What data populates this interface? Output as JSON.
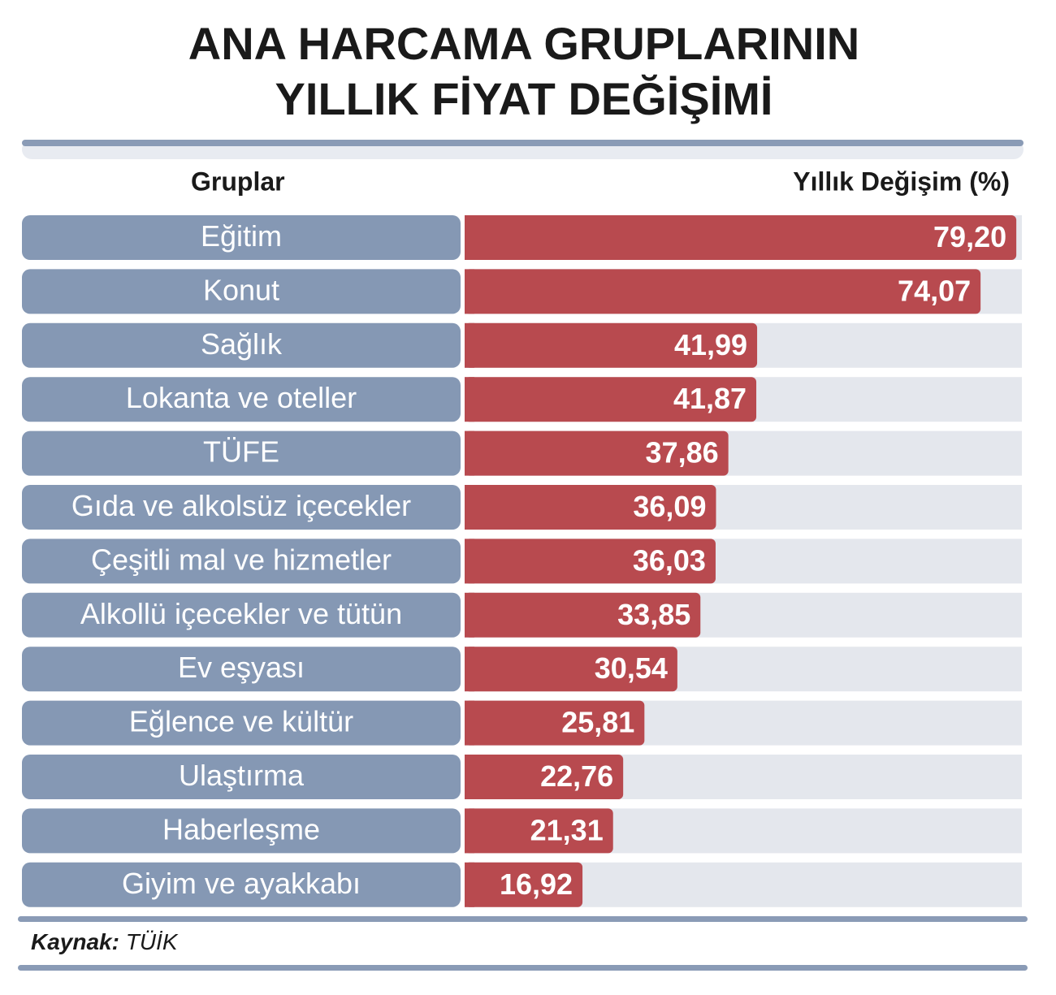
{
  "chart_data": {
    "type": "bar",
    "orientation": "horizontal",
    "title": [
      "ANA HARCAMA GRUPLARININ",
      "YILLIK FİYAT DEĞİŞİMİ"
    ],
    "category_header": "Gruplar",
    "value_header": "Yıllık Değişim (%)",
    "categories": [
      "Eğitim",
      "Konut",
      "Sağlık",
      "Lokanta ve oteller",
      "TÜFE",
      "Gıda ve alkolsüz içecekler",
      "Çeşitli mal ve hizmetler",
      "Alkollü içecekler ve tütün",
      "Ev eşyası",
      "Eğlence ve kültür",
      "Ulaştırma",
      "Haberleşme",
      "Giyim ve ayakkabı"
    ],
    "values": [
      79.2,
      74.07,
      41.99,
      41.87,
      37.86,
      36.09,
      36.03,
      33.85,
      30.54,
      25.81,
      22.76,
      21.31,
      16.92
    ],
    "value_labels": [
      "79,20",
      "74,07",
      "41,99",
      "41,87",
      "37,86",
      "36,09",
      "36,03",
      "33,85",
      "30,54",
      "25,81",
      "22,76",
      "21,31",
      "16,92"
    ],
    "xlim": [
      0,
      80
    ],
    "color": "#b84a4f",
    "source_label": "Kaynak:",
    "source": "TÜİK"
  }
}
